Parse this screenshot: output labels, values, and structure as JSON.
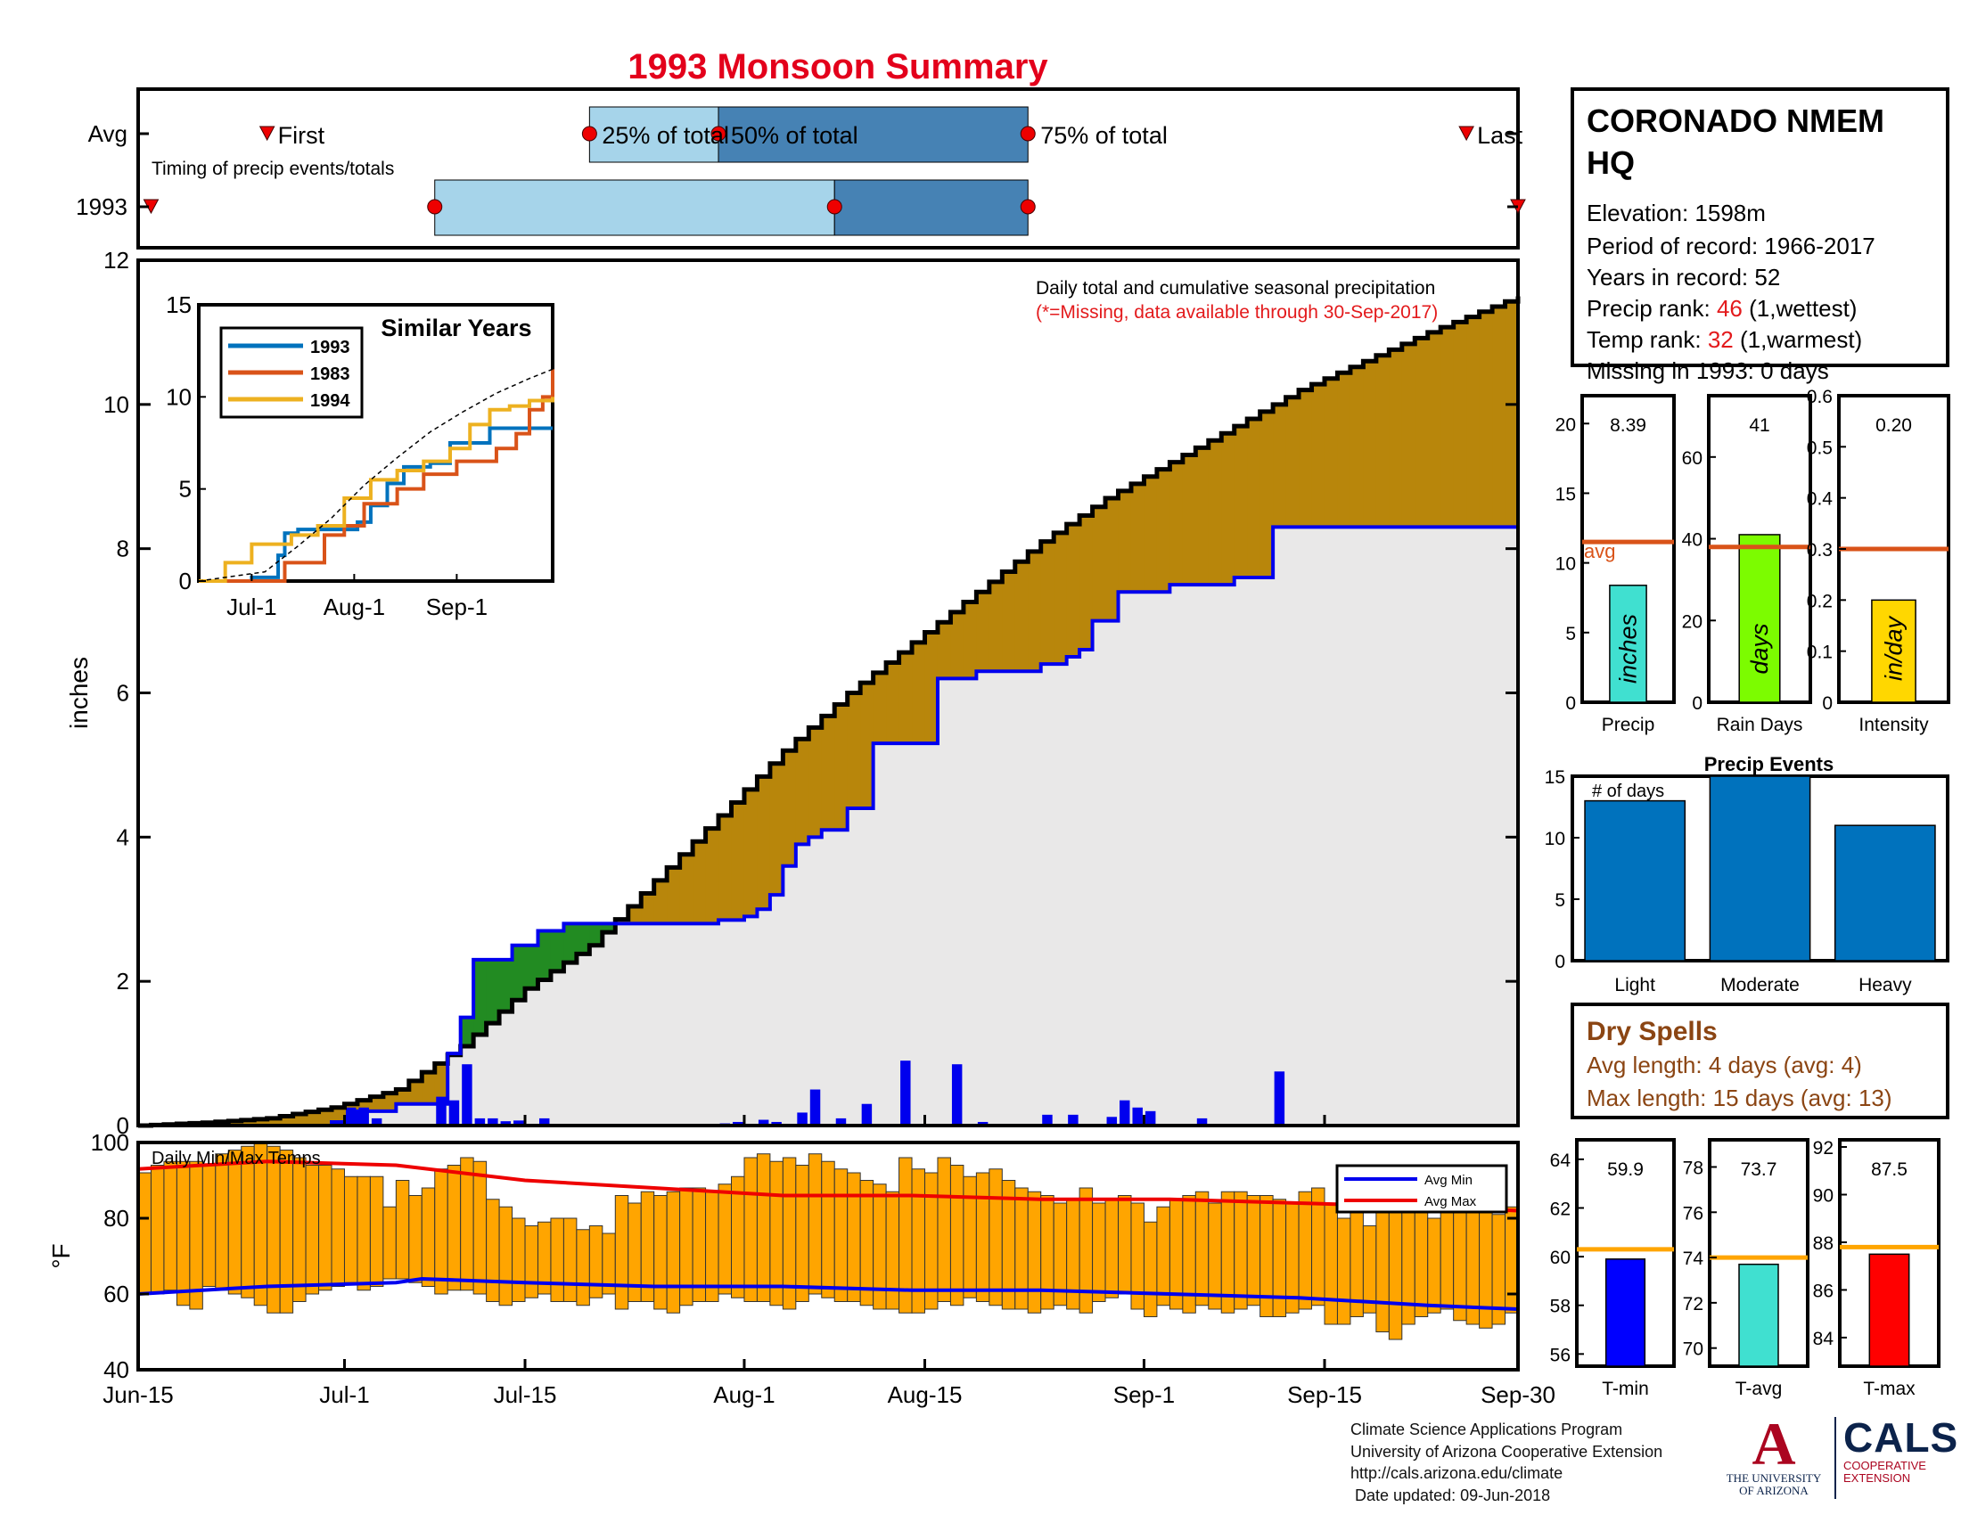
{
  "title": "1993 Monsoon Summary",
  "colors": {
    "title": "#e3001b",
    "red": "#e31a1c",
    "light_blue": "#a6d4ea",
    "steel_blue": "#4682b4",
    "brown": "#b8860b",
    "green": "#228b22",
    "gray_fill": "#e9e8e8",
    "blue": "#0000ee",
    "orange_bar": "#ffa500",
    "avg_line": "#d95319",
    "bar_blue": "#0072bd"
  },
  "timing": {
    "labels": {
      "avg": "Avg",
      "year": "1993",
      "first": "First",
      "last": "Last",
      "p25": "25% of total",
      "p50": "50% of total",
      "p75": "75% of total",
      "caption": "Timing of precip events/totals"
    },
    "avg": {
      "first": "Jun-25",
      "p25": "Jul-20",
      "p50": "Jul-30",
      "p75": "Aug-23",
      "last": "Sep-26"
    },
    "year": {
      "first": "Jun-16",
      "p25": "Jul-8",
      "p50": "Aug-8",
      "p75": "Aug-23",
      "last": "Sep-30"
    }
  },
  "station": {
    "name": "CORONADO NMEM HQ",
    "elevation": "Elevation: 1598m",
    "period": "Period of record: 1966-2017",
    "years": "Years in record: 52",
    "precip_rank_label": "Precip rank: ",
    "precip_rank_value": "46",
    "precip_rank_note": " (1,wettest)",
    "temp_rank_label": "Temp rank: ",
    "temp_rank_value": "32",
    "temp_rank_note": " (1,warmest)",
    "missing": "Missing in 1993: 0 days"
  },
  "chart_data": [
    {
      "type": "area",
      "name": "main",
      "title": "Daily total and cumulative seasonal precipitation",
      "subtitle": "(*=Missing, data available through 30-Sep-2017)",
      "ylabel": "inches",
      "ylim": [
        0,
        12
      ],
      "yticks": [
        0,
        2,
        4,
        6,
        8,
        10,
        12
      ],
      "xticks": [
        "Jun-15",
        "Jul-1",
        "Jul-15",
        "Aug-1",
        "Aug-15",
        "Sep-1",
        "Sep-15",
        "Sep-30"
      ],
      "x_range": [
        "Jun-15",
        "Sep-30"
      ],
      "avg_cumulative": [
        [
          0,
          0
        ],
        [
          5,
          0.04
        ],
        [
          10,
          0.1
        ],
        [
          15,
          0.25
        ],
        [
          20,
          0.5
        ],
        [
          25,
          1.1
        ],
        [
          30,
          1.9
        ],
        [
          35,
          2.5
        ],
        [
          40,
          3.4
        ],
        [
          45,
          4.3
        ],
        [
          50,
          5.2
        ],
        [
          55,
          6.0
        ],
        [
          60,
          6.7
        ],
        [
          65,
          7.4
        ],
        [
          70,
          8.1
        ],
        [
          75,
          8.7
        ],
        [
          80,
          9.2
        ],
        [
          85,
          9.7
        ],
        [
          90,
          10.2
        ],
        [
          95,
          10.6
        ],
        [
          100,
          11.0
        ],
        [
          107,
          11.5
        ]
      ],
      "year_cumulative": [
        [
          0,
          0
        ],
        [
          15,
          0.05
        ],
        [
          17,
          0.2
        ],
        [
          20,
          0.3
        ],
        [
          24,
          1.0
        ],
        [
          25,
          1.5
        ],
        [
          26,
          2.3
        ],
        [
          29,
          2.5
        ],
        [
          31,
          2.7
        ],
        [
          33,
          2.8
        ],
        [
          44,
          2.8
        ],
        [
          45,
          2.85
        ],
        [
          47,
          2.9
        ],
        [
          48,
          3.0
        ],
        [
          49,
          3.2
        ],
        [
          50,
          3.6
        ],
        [
          51,
          3.9
        ],
        [
          52,
          4.0
        ],
        [
          53,
          4.1
        ],
        [
          55,
          4.4
        ],
        [
          57,
          5.3
        ],
        [
          59,
          5.3
        ],
        [
          62,
          6.2
        ],
        [
          65,
          6.3
        ],
        [
          68,
          6.3
        ],
        [
          70,
          6.4
        ],
        [
          72,
          6.5
        ],
        [
          73,
          6.6
        ],
        [
          74,
          7.0
        ],
        [
          76,
          7.4
        ],
        [
          80,
          7.5
        ],
        [
          85,
          7.6
        ],
        [
          88,
          8.3
        ],
        [
          107,
          8.3
        ]
      ],
      "daily_precip": [
        [
          15,
          0.05
        ],
        [
          16,
          0.25
        ],
        [
          17,
          0.25
        ],
        [
          18,
          0.1
        ],
        [
          23,
          0.4
        ],
        [
          24,
          0.35
        ],
        [
          25,
          0.85
        ],
        [
          26,
          0.1
        ],
        [
          27,
          0.1
        ],
        [
          28,
          0.06
        ],
        [
          29,
          0.07
        ],
        [
          31,
          0.1
        ],
        [
          45,
          0.03
        ],
        [
          46,
          0.05
        ],
        [
          48,
          0.08
        ],
        [
          49,
          0.05
        ],
        [
          51,
          0.18
        ],
        [
          52,
          0.5
        ],
        [
          54,
          0.1
        ],
        [
          56,
          0.3
        ],
        [
          59,
          0.9
        ],
        [
          63,
          0.85
        ],
        [
          65,
          0.05
        ],
        [
          70,
          0.15
        ],
        [
          72,
          0.15
        ],
        [
          75,
          0.12
        ],
        [
          76,
          0.35
        ],
        [
          77,
          0.25
        ],
        [
          78,
          0.2
        ],
        [
          82,
          0.1
        ],
        [
          88,
          0.75
        ]
      ]
    },
    {
      "type": "line",
      "name": "similar_years",
      "title": "Similar Years",
      "ylim": [
        0,
        15
      ],
      "yticks": [
        0,
        5,
        10,
        15
      ],
      "xticks": [
        "Jul-1",
        "Aug-1",
        "Sep-1"
      ],
      "series": [
        {
          "name": "1993",
          "color": "#0072bd",
          "values": [
            [
              0,
              0
            ],
            [
              16,
              0.2
            ],
            [
              24,
              1.4
            ],
            [
              26,
              2.6
            ],
            [
              30,
              2.8
            ],
            [
              44,
              2.8
            ],
            [
              48,
              3.2
            ],
            [
              52,
              4.1
            ],
            [
              57,
              5.3
            ],
            [
              62,
              6.2
            ],
            [
              70,
              6.4
            ],
            [
              76,
              7.5
            ],
            [
              88,
              8.3
            ],
            [
              107,
              8.3
            ]
          ]
        },
        {
          "name": "1983",
          "color": "#d95319",
          "values": [
            [
              0,
              0
            ],
            [
              24,
              0
            ],
            [
              26,
              1
            ],
            [
              38,
              2.5
            ],
            [
              44,
              3.0
            ],
            [
              50,
              4.2
            ],
            [
              60,
              5.0
            ],
            [
              68,
              5.8
            ],
            [
              78,
              6.5
            ],
            [
              90,
              7.2
            ],
            [
              96,
              8.0
            ],
            [
              100,
              9.3
            ],
            [
              104,
              10.0
            ],
            [
              107,
              11.5
            ]
          ]
        },
        {
          "name": "1994",
          "color": "#edb120",
          "values": [
            [
              0,
              0
            ],
            [
              8,
              1
            ],
            [
              16,
              2.0
            ],
            [
              28,
              2.5
            ],
            [
              36,
              3.0
            ],
            [
              44,
              4.5
            ],
            [
              52,
              5.5
            ],
            [
              60,
              6.0
            ],
            [
              68,
              6.5
            ],
            [
              76,
              7.2
            ],
            [
              82,
              8.5
            ],
            [
              88,
              9.3
            ],
            [
              94,
              9.5
            ],
            [
              100,
              9.8
            ],
            [
              107,
              10.0
            ]
          ]
        },
        {
          "name": "avg",
          "color": "#000000",
          "values": [
            [
              0,
              0
            ],
            [
              20,
              0.5
            ],
            [
              30,
              1.9
            ],
            [
              40,
              3.4
            ],
            [
              50,
              5.2
            ],
            [
              60,
              6.7
            ],
            [
              70,
              8.1
            ],
            [
              80,
              9.2
            ],
            [
              90,
              10.2
            ],
            [
              100,
              11.0
            ],
            [
              107,
              11.5
            ]
          ]
        }
      ]
    },
    {
      "type": "bar",
      "name": "precip",
      "xlabel": "Precip",
      "value": 8.39,
      "value_label": "8.39",
      "avg": 11.5,
      "avg_label": "avg",
      "ylim": [
        0,
        22
      ],
      "yticks": [
        0,
        5,
        10,
        15,
        20
      ],
      "bar_label": "inches",
      "color": "#40e0d0"
    },
    {
      "type": "bar",
      "name": "rain_days",
      "xlabel": "Rain Days",
      "value": 41,
      "value_label": "41",
      "avg": 38,
      "ylim": [
        0,
        75
      ],
      "yticks": [
        0,
        20,
        40,
        60
      ],
      "bar_label": "days",
      "color": "#7cfc00"
    },
    {
      "type": "bar",
      "name": "intensity",
      "xlabel": "Intensity",
      "value": 0.2,
      "value_label": "0.20",
      "avg": 0.3,
      "ylim": [
        0,
        0.6
      ],
      "yticks": [
        0,
        0.1,
        0.2,
        0.3,
        0.4,
        0.5,
        0.6
      ],
      "bar_label": "in/day",
      "color": "#ffd700"
    },
    {
      "type": "bar",
      "name": "precip_events",
      "title": "Precip Events",
      "ylabel_inner": "# of days",
      "categories": [
        "Light",
        "Moderate",
        "Heavy"
      ],
      "values": [
        13,
        15,
        11
      ],
      "ylim": [
        0,
        15
      ],
      "yticks": [
        0,
        5,
        10,
        15
      ]
    },
    {
      "type": "bar",
      "name": "temps",
      "title": "Daily Min/Max Temps",
      "ylabel": "°F",
      "ylim": [
        40,
        100
      ],
      "yticks": [
        40,
        60,
        80,
        100
      ],
      "legend": [
        "Avg Min",
        "Avg Max"
      ],
      "avg_min": [
        [
          0,
          60
        ],
        [
          10,
          62
        ],
        [
          20,
          63
        ],
        [
          22,
          64
        ],
        [
          30,
          63
        ],
        [
          40,
          62
        ],
        [
          50,
          62
        ],
        [
          60,
          61
        ],
        [
          70,
          61
        ],
        [
          80,
          60
        ],
        [
          90,
          59
        ],
        [
          100,
          57
        ],
        [
          107,
          56
        ]
      ],
      "avg_max": [
        [
          0,
          93
        ],
        [
          10,
          95
        ],
        [
          20,
          94
        ],
        [
          30,
          90
        ],
        [
          40,
          88
        ],
        [
          50,
          86
        ],
        [
          60,
          86
        ],
        [
          70,
          85
        ],
        [
          80,
          85
        ],
        [
          90,
          84
        ],
        [
          100,
          83
        ],
        [
          107,
          82
        ]
      ],
      "daily_max": [
        92,
        94,
        95,
        95,
        95,
        94,
        97,
        98,
        99,
        100,
        99,
        98,
        96,
        94,
        94,
        93,
        91,
        91,
        91,
        83,
        90,
        86,
        88,
        93,
        94,
        96,
        95,
        85,
        83,
        80,
        78,
        79,
        80,
        80,
        77,
        78,
        76,
        86,
        84,
        87,
        86,
        87,
        88,
        88,
        87,
        89,
        91,
        96,
        97,
        95,
        96,
        94,
        97,
        95,
        93,
        92,
        90,
        89,
        87,
        96,
        93,
        92,
        96,
        94,
        91,
        92,
        93,
        90,
        88,
        87,
        86,
        84,
        85,
        88,
        84,
        85,
        86,
        84,
        79,
        83,
        85,
        86,
        87,
        84,
        87,
        87,
        86,
        86,
        85,
        84,
        87,
        88,
        84,
        80,
        83,
        78,
        84,
        86,
        82,
        82,
        80,
        82,
        82,
        84,
        83,
        81,
        83
      ],
      "daily_min": [
        60,
        60,
        61,
        57,
        56,
        62,
        61,
        60,
        59,
        57,
        55,
        55,
        58,
        60,
        61,
        62,
        63,
        61,
        62,
        64,
        64,
        63,
        62,
        60,
        61,
        61,
        60,
        58,
        57,
        58,
        59,
        60,
        58,
        58,
        57,
        59,
        60,
        56,
        58,
        58,
        56,
        55,
        57,
        58,
        58,
        60,
        59,
        58,
        58,
        57,
        56,
        58,
        60,
        59,
        58,
        58,
        57,
        56,
        56,
        55,
        55,
        56,
        58,
        57,
        59,
        58,
        57,
        56,
        56,
        55,
        56,
        57,
        56,
        55,
        58,
        59,
        60,
        56,
        54,
        57,
        56,
        55,
        57,
        56,
        55,
        56,
        57,
        54,
        54,
        55,
        56,
        57,
        52,
        52,
        54,
        55,
        50,
        48,
        52,
        54,
        55,
        56,
        53,
        52,
        51,
        52,
        55
      ]
    },
    {
      "type": "bar",
      "name": "tmin",
      "xlabel": "T-min",
      "value": 59.9,
      "value_label": "59.9",
      "avg": 60.3,
      "ylim": [
        55.5,
        64.8
      ],
      "yticks": [
        56,
        58,
        60,
        62,
        64
      ],
      "color": "#0000ff"
    },
    {
      "type": "bar",
      "name": "tavg",
      "xlabel": "T-avg",
      "value": 73.7,
      "value_label": "73.7",
      "avg": 74,
      "ylim": [
        69.2,
        79.2
      ],
      "yticks": [
        70,
        72,
        74,
        76,
        78
      ],
      "color": "#40e0d0"
    },
    {
      "type": "bar",
      "name": "tmax",
      "xlabel": "T-max",
      "value": 87.5,
      "value_label": "87.5",
      "avg": 87.8,
      "ylim": [
        82.8,
        92.3
      ],
      "yticks": [
        84,
        86,
        88,
        90,
        92
      ],
      "color": "#ff0000"
    }
  ],
  "dry_spells": {
    "title": "Dry Spells",
    "avg": "Avg length: 4 days (avg: 4)",
    "max": "Max length: 15 days (avg: 13)"
  },
  "footer": {
    "l1": "Climate Science Applications Program",
    "l2": "University of Arizona Cooperative Extension",
    "l3": "http://cals.arizona.edu/climate",
    "l4": " Date updated: 09-Jun-2018"
  },
  "logos": {
    "ua_mark": "A",
    "ua_text1": "THE UNIVERSITY",
    "ua_text2": "OF ARIZONA",
    "cals": "CALS",
    "cals_sub1": "COOPERATIVE",
    "cals_sub2": "EXTENSION"
  }
}
